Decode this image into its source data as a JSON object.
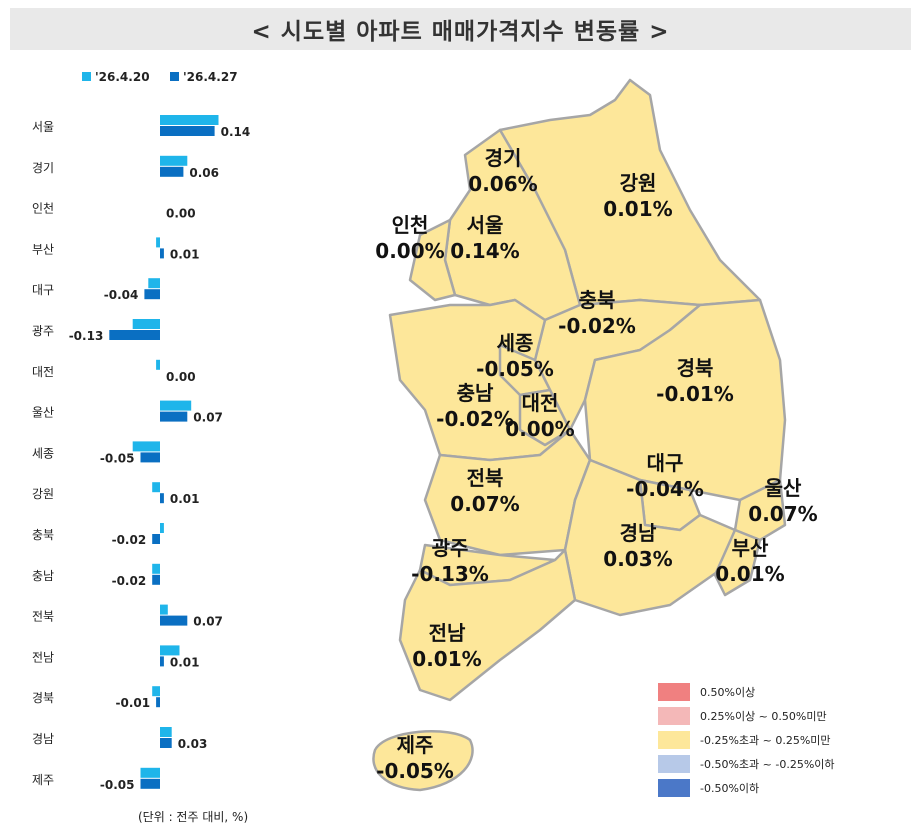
{
  "title": "< 시도별 아파트 매매가격지수 변동률 >",
  "unit_note": "(단위 : 전주 대비, %)",
  "colors": {
    "series_prev": "#1fb5ea",
    "series_curr": "#0a6fc2",
    "map_fill": "#fde79a",
    "map_border": "#a6a6a6",
    "legend": [
      "#f08080",
      "#f4b8b8",
      "#fde79a",
      "#b7c9e8",
      "#4b78c8"
    ]
  },
  "chart_data": {
    "type": "bar",
    "orientation": "horizontal",
    "categories": [
      "서울",
      "경기",
      "인천",
      "부산",
      "대구",
      "광주",
      "대전",
      "울산",
      "세종",
      "강원",
      "충북",
      "충남",
      "전북",
      "전남",
      "경북",
      "경남",
      "제주"
    ],
    "series": [
      {
        "name": "'26.4.20",
        "values": [
          0.15,
          0.07,
          0.0,
          -0.01,
          -0.03,
          -0.07,
          -0.01,
          0.08,
          -0.07,
          -0.02,
          0.01,
          -0.02,
          0.02,
          0.05,
          -0.02,
          0.03,
          -0.05
        ]
      },
      {
        "name": "'26.4.27",
        "values": [
          0.14,
          0.06,
          0.0,
          0.01,
          -0.04,
          -0.13,
          0.0,
          0.07,
          -0.05,
          0.01,
          -0.02,
          -0.02,
          0.07,
          0.01,
          -0.01,
          0.03,
          -0.05
        ]
      }
    ],
    "data_labels": [
      "0.14",
      "0.06",
      "0.00",
      "0.01",
      "-0.04",
      "-0.13",
      "0.00",
      "0.07",
      "-0.05",
      "0.01",
      "-0.02",
      "-0.02",
      "0.07",
      "0.01",
      "-0.01",
      "0.03",
      "-0.05"
    ],
    "legend_position": "top-left",
    "grid": false
  },
  "map_labels": [
    {
      "name": "경기",
      "value": "0.06%"
    },
    {
      "name": "강원",
      "value": "0.01%"
    },
    {
      "name": "인천",
      "value": "0.00%"
    },
    {
      "name": "서울",
      "value": "0.14%"
    },
    {
      "name": "충북",
      "value": "-0.02%"
    },
    {
      "name": "세종",
      "value": "-0.05%"
    },
    {
      "name": "경북",
      "value": "-0.01%"
    },
    {
      "name": "충남",
      "value": "-0.02%"
    },
    {
      "name": "대전",
      "value": "0.00%"
    },
    {
      "name": "대구",
      "value": "-0.04%"
    },
    {
      "name": "울산",
      "value": "0.07%"
    },
    {
      "name": "전북",
      "value": "0.07%"
    },
    {
      "name": "경남",
      "value": "0.03%"
    },
    {
      "name": "부산",
      "value": "0.01%"
    },
    {
      "name": "광주",
      "value": "-0.13%"
    },
    {
      "name": "전남",
      "value": "0.01%"
    },
    {
      "name": "제주",
      "value": "-0.05%"
    }
  ],
  "legend_items": [
    "0.50%이상",
    "0.25%이상 ~ 0.50%미만",
    "-0.25%초과 ~ 0.25%미만",
    "-0.50%초과 ~ -0.25%이하",
    "-0.50%이하"
  ]
}
